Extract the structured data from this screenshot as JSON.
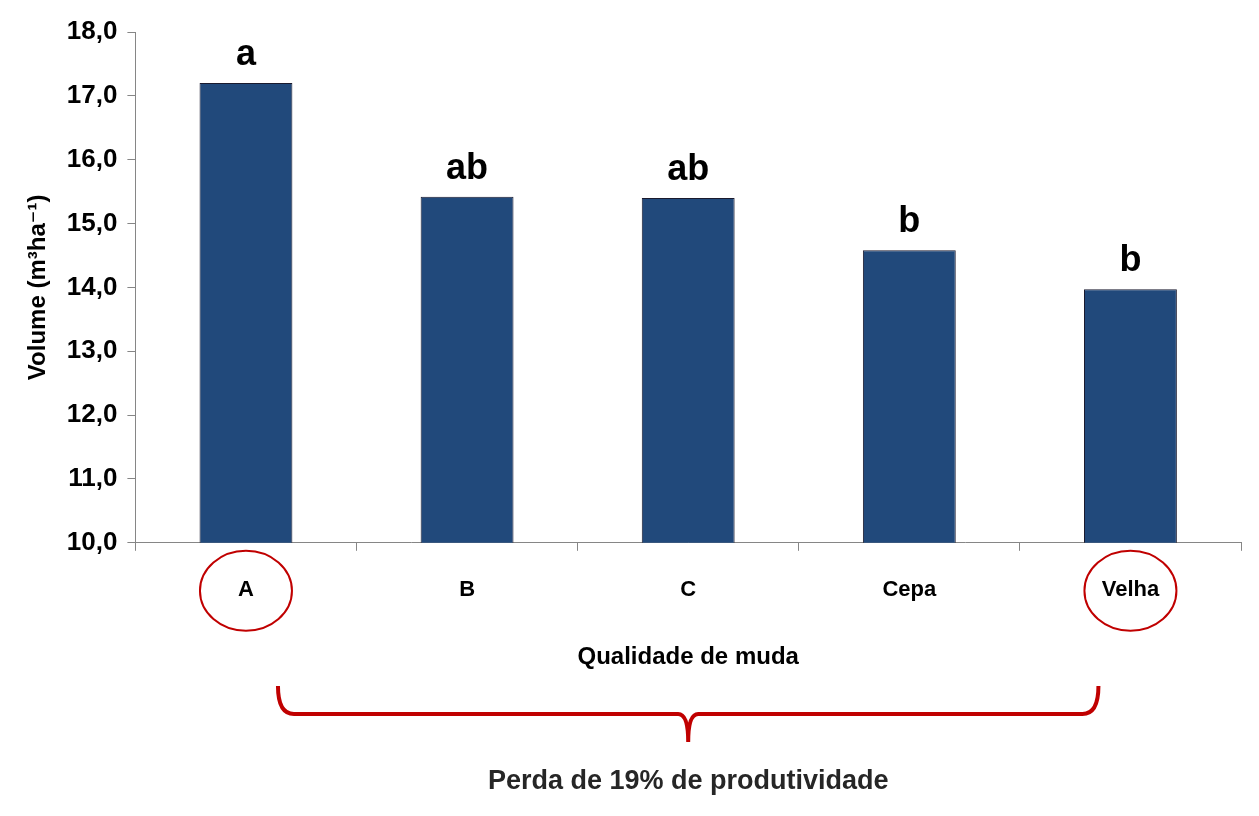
{
  "chart_data": {
    "type": "bar",
    "x_label": "Qualidade de muda",
    "y_label": "Volume (m³ha⁻¹)",
    "categories": [
      "A",
      "B",
      "C",
      "Cepa",
      "Velha"
    ],
    "values": [
      17.2,
      15.42,
      15.4,
      14.58,
      13.97
    ],
    "bar_annotations": [
      "a",
      "ab",
      "ab",
      "b",
      "b"
    ],
    "highlighted": [
      "A",
      "Velha"
    ],
    "annotation": {
      "text": "Perda de 19% de produtividade",
      "from": "A",
      "to": "Velha"
    },
    "color": "#21497b",
    "ylim": [
      10,
      18
    ],
    "yticks": [
      {
        "value": 10,
        "label": "10,0"
      },
      {
        "value": 11,
        "label": "11,0"
      },
      {
        "value": 12,
        "label": "12,0"
      },
      {
        "value": 13,
        "label": "13,0"
      },
      {
        "value": 14,
        "label": "14,0"
      },
      {
        "value": 15,
        "label": "15,0"
      },
      {
        "value": 16,
        "label": "16,0"
      },
      {
        "value": 17,
        "label": "17,0"
      },
      {
        "value": 18,
        "label": "18,0"
      }
    ],
    "grid": false
  }
}
